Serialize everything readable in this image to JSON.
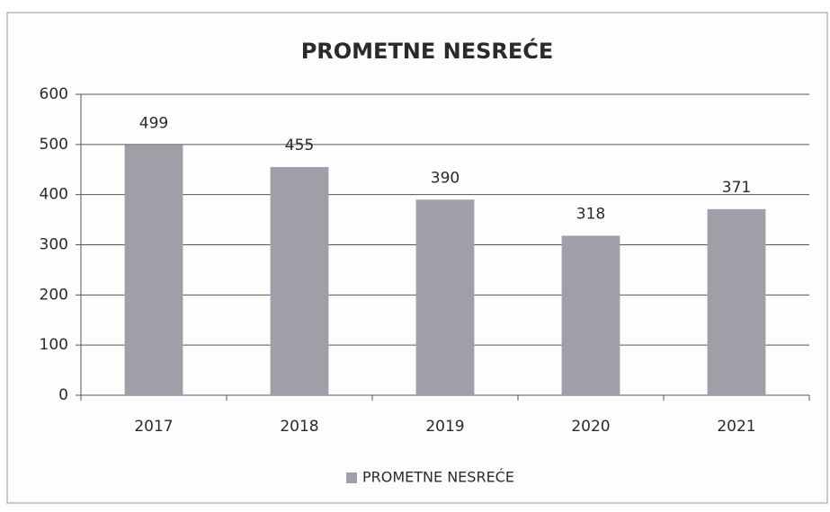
{
  "chart_data": {
    "type": "bar",
    "title": "PROMETNE NESREĆE",
    "categories": [
      "2017",
      "2018",
      "2019",
      "2020",
      "2021"
    ],
    "series": [
      {
        "name": "PROMETNE NESREĆE",
        "color": "#a19ea8",
        "values": [
          499,
          455,
          390,
          318,
          371
        ]
      }
    ],
    "ylim": [
      0,
      600
    ],
    "yticks": [
      0,
      100,
      200,
      300,
      400,
      500,
      600
    ],
    "grid": true,
    "legend": "bottom"
  }
}
